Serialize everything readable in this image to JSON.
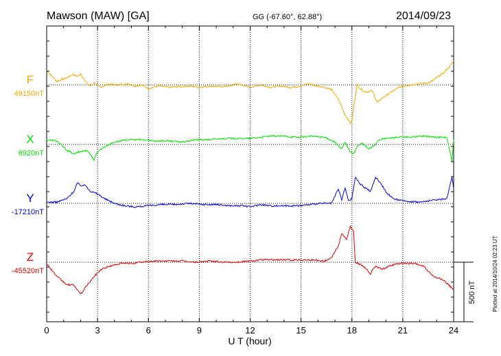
{
  "header": {
    "station": "Mawson (MAW)  [GA]",
    "coords": "GG (-67.60°,  62.88°)",
    "date": "2014/09/23"
  },
  "side_note": "Plotted at 2014/10/24 02:23 UT",
  "chart_data": {
    "type": "line",
    "xlabel": "U T (hour)",
    "xlim": [
      0,
      24
    ],
    "xticks": [
      0,
      3,
      6,
      9,
      12,
      15,
      18,
      21,
      24
    ],
    "scale_bar_label": "500 nT",
    "scale_bar_nT": 500,
    "series": [
      {
        "name": "F",
        "baseline_label": "49150nT",
        "color": "#f0a800",
        "points": [
          [
            0,
            120
          ],
          [
            0.6,
            30
          ],
          [
            1.2,
            60
          ],
          [
            1.6,
            90
          ],
          [
            1.8,
            70
          ],
          [
            2.0,
            90
          ],
          [
            2.2,
            50
          ],
          [
            2.4,
            10
          ],
          [
            2.6,
            -10
          ],
          [
            2.8,
            20
          ],
          [
            3.2,
            -20
          ],
          [
            3.6,
            5
          ],
          [
            4.2,
            0
          ],
          [
            4.8,
            10
          ],
          [
            5.2,
            -10
          ],
          [
            5.6,
            0
          ],
          [
            6.0,
            -30
          ],
          [
            6.6,
            -10
          ],
          [
            7.2,
            -20
          ],
          [
            7.8,
            -15
          ],
          [
            8.4,
            -10
          ],
          [
            9.0,
            -20
          ],
          [
            9.6,
            -10
          ],
          [
            10.2,
            -15
          ],
          [
            10.8,
            -10
          ],
          [
            11.2,
            10
          ],
          [
            11.6,
            -5
          ],
          [
            12.0,
            -20
          ],
          [
            12.6,
            0
          ],
          [
            13.2,
            -20
          ],
          [
            13.8,
            -10
          ],
          [
            14.4,
            -20
          ],
          [
            15.0,
            -10
          ],
          [
            15.4,
            10
          ],
          [
            15.8,
            -5
          ],
          [
            16.4,
            -20
          ],
          [
            16.8,
            -40
          ],
          [
            17.2,
            -120
          ],
          [
            17.6,
            -250
          ],
          [
            17.9,
            -320
          ],
          [
            18.0,
            -300
          ],
          [
            18.1,
            -200
          ],
          [
            18.3,
            0
          ],
          [
            18.5,
            -30
          ],
          [
            18.8,
            -60
          ],
          [
            19.2,
            -50
          ],
          [
            19.5,
            -150
          ],
          [
            19.8,
            -110
          ],
          [
            20.2,
            -70
          ],
          [
            20.8,
            -20
          ],
          [
            21.4,
            0
          ],
          [
            22.0,
            10
          ],
          [
            22.6,
            20
          ],
          [
            23.0,
            60
          ],
          [
            23.4,
            100
          ],
          [
            23.8,
            160
          ],
          [
            24.0,
            200
          ]
        ]
      },
      {
        "name": "X",
        "baseline_label": "6920nT",
        "color": "#00e000",
        "points": [
          [
            0,
            40
          ],
          [
            0.6,
            30
          ],
          [
            1.2,
            -50
          ],
          [
            1.6,
            -80
          ],
          [
            2.0,
            -60
          ],
          [
            2.4,
            -50
          ],
          [
            2.8,
            -130
          ],
          [
            3.0,
            -60
          ],
          [
            3.4,
            -20
          ],
          [
            4.0,
            20
          ],
          [
            4.8,
            40
          ],
          [
            5.6,
            40
          ],
          [
            6.4,
            30
          ],
          [
            7.2,
            30
          ],
          [
            8.0,
            20
          ],
          [
            8.8,
            40
          ],
          [
            9.6,
            40
          ],
          [
            10.4,
            50
          ],
          [
            11.2,
            50
          ],
          [
            12.0,
            50
          ],
          [
            12.6,
            60
          ],
          [
            13.2,
            70
          ],
          [
            14.0,
            70
          ],
          [
            14.8,
            60
          ],
          [
            15.6,
            70
          ],
          [
            16.4,
            60
          ],
          [
            17.0,
            20
          ],
          [
            17.4,
            -40
          ],
          [
            17.6,
            20
          ],
          [
            17.9,
            -60
          ],
          [
            18.1,
            -80
          ],
          [
            18.3,
            -20
          ],
          [
            18.6,
            10
          ],
          [
            19.0,
            -40
          ],
          [
            19.3,
            -10
          ],
          [
            19.6,
            40
          ],
          [
            20.0,
            50
          ],
          [
            20.6,
            60
          ],
          [
            21.4,
            60
          ],
          [
            22.2,
            70
          ],
          [
            23.0,
            60
          ],
          [
            23.6,
            60
          ],
          [
            23.9,
            -140
          ],
          [
            24.0,
            40
          ]
        ]
      },
      {
        "name": "Y",
        "baseline_label": "-17210nT",
        "color": "#0000e0",
        "points": [
          [
            0,
            10
          ],
          [
            0.6,
            10
          ],
          [
            1.2,
            40
          ],
          [
            1.6,
            100
          ],
          [
            1.8,
            170
          ],
          [
            2.0,
            150
          ],
          [
            2.3,
            150
          ],
          [
            2.6,
            100
          ],
          [
            3.0,
            80
          ],
          [
            3.4,
            40
          ],
          [
            4.0,
            0
          ],
          [
            4.6,
            -20
          ],
          [
            5.2,
            -30
          ],
          [
            6.0,
            -20
          ],
          [
            6.8,
            -10
          ],
          [
            7.6,
            -10
          ],
          [
            8.4,
            0
          ],
          [
            9.2,
            -10
          ],
          [
            10.0,
            -10
          ],
          [
            10.8,
            -20
          ],
          [
            11.6,
            -20
          ],
          [
            12.0,
            -30
          ],
          [
            12.6,
            -10
          ],
          [
            13.2,
            -20
          ],
          [
            14.0,
            -20
          ],
          [
            14.8,
            -20
          ],
          [
            15.6,
            -10
          ],
          [
            16.2,
            0
          ],
          [
            16.8,
            0
          ],
          [
            17.2,
            120
          ],
          [
            17.4,
            30
          ],
          [
            17.6,
            130
          ],
          [
            17.8,
            20
          ],
          [
            18.0,
            40
          ],
          [
            18.2,
            220
          ],
          [
            18.5,
            160
          ],
          [
            18.8,
            130
          ],
          [
            19.1,
            100
          ],
          [
            19.4,
            220
          ],
          [
            19.7,
            170
          ],
          [
            20.0,
            100
          ],
          [
            20.4,
            40
          ],
          [
            21.0,
            20
          ],
          [
            22.0,
            10
          ],
          [
            23.0,
            30
          ],
          [
            23.6,
            40
          ],
          [
            23.9,
            220
          ],
          [
            24.0,
            120
          ]
        ]
      },
      {
        "name": "Z",
        "baseline_label": "-45520nT",
        "color": "#e00000",
        "points": [
          [
            0,
            -10
          ],
          [
            0.6,
            -120
          ],
          [
            1.2,
            -190
          ],
          [
            1.6,
            -190
          ],
          [
            2.0,
            -270
          ],
          [
            2.4,
            -190
          ],
          [
            2.8,
            -120
          ],
          [
            3.2,
            -60
          ],
          [
            3.8,
            -30
          ],
          [
            4.4,
            -10
          ],
          [
            5.0,
            -10
          ],
          [
            5.6,
            0
          ],
          [
            6.4,
            10
          ],
          [
            7.2,
            10
          ],
          [
            8.0,
            10
          ],
          [
            8.8,
            0
          ],
          [
            9.6,
            10
          ],
          [
            10.4,
            0
          ],
          [
            11.2,
            0
          ],
          [
            12.0,
            10
          ],
          [
            12.6,
            20
          ],
          [
            13.2,
            20
          ],
          [
            14.0,
            20
          ],
          [
            14.8,
            20
          ],
          [
            15.6,
            20
          ],
          [
            16.4,
            10
          ],
          [
            16.8,
            40
          ],
          [
            17.2,
            140
          ],
          [
            17.4,
            240
          ],
          [
            17.7,
            190
          ],
          [
            17.9,
            300
          ],
          [
            18.1,
            260
          ],
          [
            18.2,
            0
          ],
          [
            18.5,
            -20
          ],
          [
            18.8,
            -50
          ],
          [
            19.1,
            -100
          ],
          [
            19.3,
            -40
          ],
          [
            19.5,
            -40
          ],
          [
            19.8,
            -60
          ],
          [
            20.2,
            -30
          ],
          [
            20.8,
            -10
          ],
          [
            21.6,
            -10
          ],
          [
            22.2,
            -30
          ],
          [
            22.8,
            -120
          ],
          [
            23.4,
            -150
          ],
          [
            24.0,
            -230
          ]
        ]
      }
    ]
  }
}
